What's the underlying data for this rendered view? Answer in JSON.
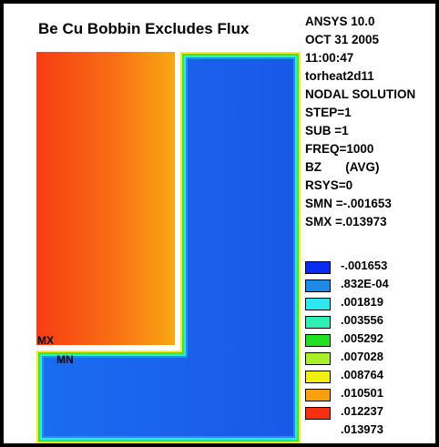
{
  "title": "Be Cu Bobbin Excludes Flux",
  "labels": {
    "max": "MX",
    "min": "MN"
  },
  "info": [
    "ANSYS 10.0",
    "OCT 31 2005",
    "11:00:47",
    "torheat2d11",
    "NODAL SOLUTION",
    "STEP=1",
    "SUB =1",
    "FREQ=1000",
    "BZ       (AVG)",
    "RSYS=0",
    "SMN =-.001653",
    "SMX =.013973"
  ],
  "legend": [
    {
      "value": "-.001653",
      "color": "#0a2cf0"
    },
    {
      "value": ".832E-04",
      "color": "#1e8ae8"
    },
    {
      "value": ".001819",
      "color": "#2ee8f0"
    },
    {
      "value": ".003556",
      "color": "#2ef0b4"
    },
    {
      "value": ".005292",
      "color": "#22e022"
    },
    {
      "value": ".007028",
      "color": "#a8f028"
    },
    {
      "value": ".008764",
      "color": "#f0f010"
    },
    {
      "value": ".010501",
      "color": "#f8a010"
    },
    {
      "value": ".012237",
      "color": "#f83010"
    },
    {
      "value": ".013973",
      "color": "none"
    }
  ]
}
